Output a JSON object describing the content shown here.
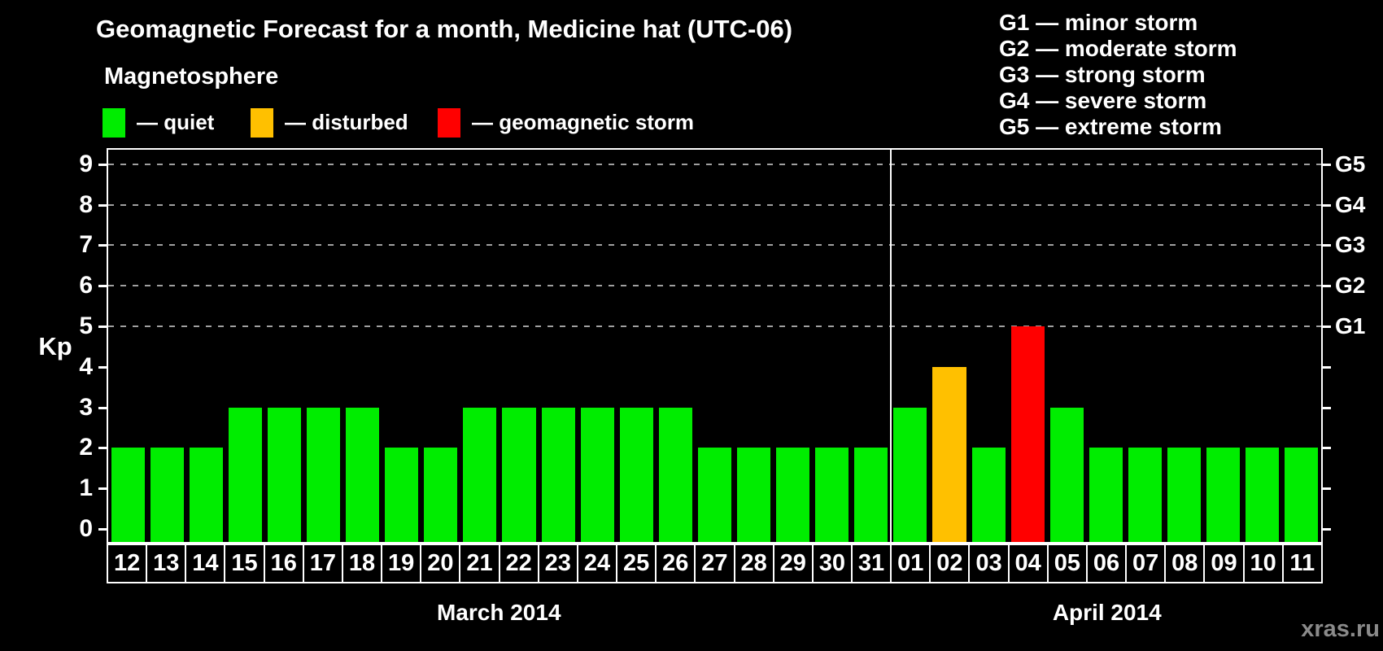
{
  "title": "Geomagnetic Forecast for a month, Medicine hat (UTC-06)",
  "watermark": "xras.ru",
  "magnetosphere_legend": {
    "heading": "Magnetosphere",
    "items": [
      {
        "name": "quiet",
        "label": "— quiet",
        "color": "#00ed00"
      },
      {
        "name": "disturbed",
        "label": "— disturbed",
        "color": "#ffc000"
      },
      {
        "name": "storm",
        "label": "— geomagnetic storm",
        "color": "#ff0000"
      }
    ]
  },
  "storm_scale_legend": [
    {
      "code": "G1",
      "label": "G1 — minor storm"
    },
    {
      "code": "G2",
      "label": "G2 — moderate storm"
    },
    {
      "code": "G3",
      "label": "G3 — strong storm"
    },
    {
      "code": "G4",
      "label": "G4 — severe storm"
    },
    {
      "code": "G5",
      "label": "G5 — extreme storm"
    }
  ],
  "axis": {
    "y_label": "Kp",
    "y_ticks": [
      0,
      1,
      2,
      3,
      4,
      5,
      6,
      7,
      8,
      9
    ],
    "g_labels": [
      {
        "label": "G1",
        "level": 5
      },
      {
        "label": "G2",
        "level": 6
      },
      {
        "label": "G3",
        "level": 7
      },
      {
        "label": "G4",
        "level": 8
      },
      {
        "label": "G5",
        "level": 9
      }
    ]
  },
  "thresholds": {
    "disturbed_min": 4,
    "storm_min": 5
  },
  "colors": {
    "background": "#000000",
    "text": "#ffffff",
    "grid": "#a0a0a0",
    "quiet": "#00ed00",
    "disturbed": "#ffc000",
    "storm": "#ff0000",
    "watermark": "#8a8a8a"
  },
  "chart_data": {
    "type": "bar",
    "title": "Geomagnetic Forecast for a month, Medicine hat (UTC-06)",
    "xlabel": "",
    "ylabel": "Kp",
    "ylim": [
      0,
      9.4
    ],
    "grid": "horizontal dashed lines at Kp levels 5-9 (G1-G5)",
    "legend_position": "top",
    "categories": [
      "12",
      "13",
      "14",
      "15",
      "16",
      "17",
      "18",
      "19",
      "20",
      "21",
      "22",
      "23",
      "24",
      "25",
      "26",
      "27",
      "28",
      "29",
      "30",
      "31",
      "01",
      "02",
      "03",
      "04",
      "05",
      "06",
      "07",
      "08",
      "09",
      "10",
      "11"
    ],
    "values": [
      2,
      2,
      2,
      3,
      3,
      3,
      3,
      2,
      2,
      3,
      3,
      3,
      3,
      3,
      3,
      2,
      2,
      2,
      2,
      2,
      3,
      4,
      2,
      5,
      3,
      2,
      2,
      2,
      2,
      2,
      2
    ],
    "months": [
      {
        "label": "March 2014",
        "count": 20
      },
      {
        "label": "April 2014",
        "count": 11
      }
    ]
  }
}
